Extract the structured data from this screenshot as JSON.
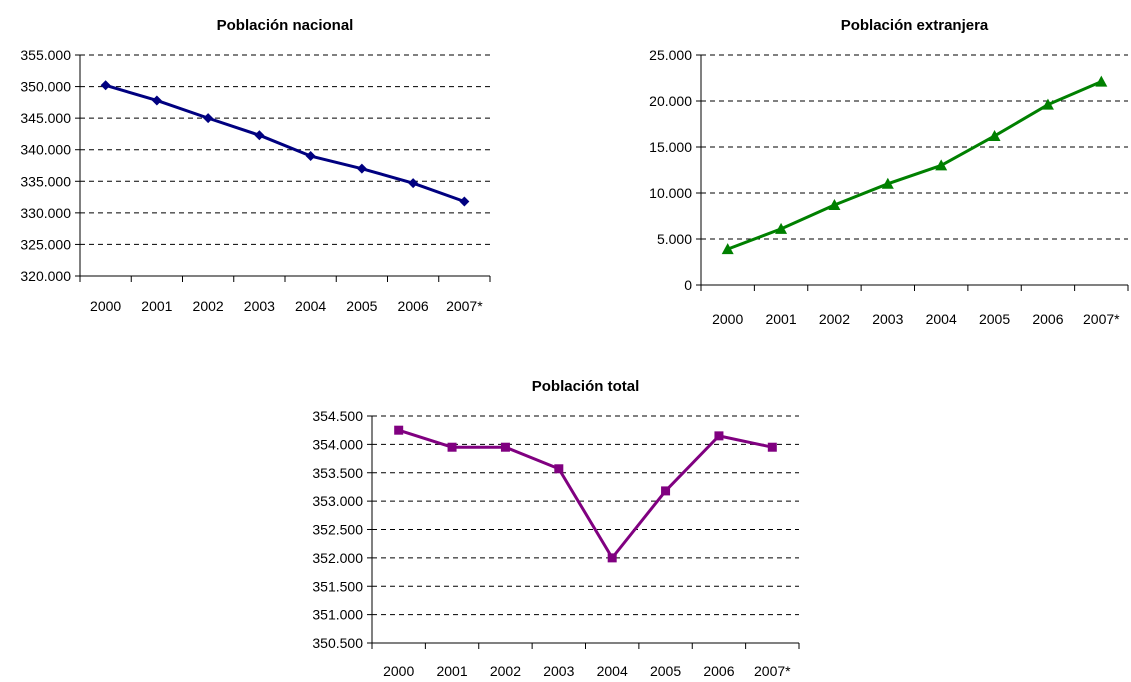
{
  "chart_data": [
    {
      "id": "nacional",
      "type": "line",
      "title": "Población nacional",
      "categories": [
        "2000",
        "2001",
        "2002",
        "2003",
        "2004",
        "2005",
        "2006",
        "2007*"
      ],
      "ylim": [
        320000,
        355000
      ],
      "yticks": [
        "320.000",
        "325.000",
        "330.000",
        "335.000",
        "340.000",
        "345.000",
        "350.000",
        "355.000"
      ],
      "series": [
        {
          "values": [
            350200,
            347800,
            345000,
            342300,
            339000,
            337000,
            334700,
            331800
          ],
          "color": "#000080",
          "marker": "diamond"
        }
      ],
      "grid": "dashed-horizontal",
      "legend": "none"
    },
    {
      "id": "extranjera",
      "type": "line",
      "title": "Población extranjera",
      "categories": [
        "2000",
        "2001",
        "2002",
        "2003",
        "2004",
        "2005",
        "2006",
        "2007*"
      ],
      "ylim": [
        0,
        25000
      ],
      "yticks": [
        "0",
        "5.000",
        "10.000",
        "15.000",
        "20.000",
        "25.000"
      ],
      "series": [
        {
          "values": [
            3900,
            6100,
            8700,
            11000,
            13000,
            16200,
            19600,
            22100
          ],
          "color": "#008000",
          "marker": "triangle"
        }
      ],
      "grid": "dashed-horizontal",
      "legend": "none"
    },
    {
      "id": "total",
      "type": "line",
      "title": "Población total",
      "categories": [
        "2000",
        "2001",
        "2002",
        "2003",
        "2004",
        "2005",
        "2006",
        "2007*"
      ],
      "ylim": [
        350500,
        354500
      ],
      "yticks": [
        "350.500",
        "351.000",
        "351.500",
        "352.000",
        "352.500",
        "353.000",
        "353.500",
        "354.000",
        "354.500"
      ],
      "series": [
        {
          "values": [
            354250,
            353950,
            353950,
            353570,
            352000,
            353180,
            354150,
            353950
          ],
          "color": "#800080",
          "marker": "square"
        }
      ],
      "grid": "dashed-horizontal",
      "legend": "none"
    }
  ]
}
